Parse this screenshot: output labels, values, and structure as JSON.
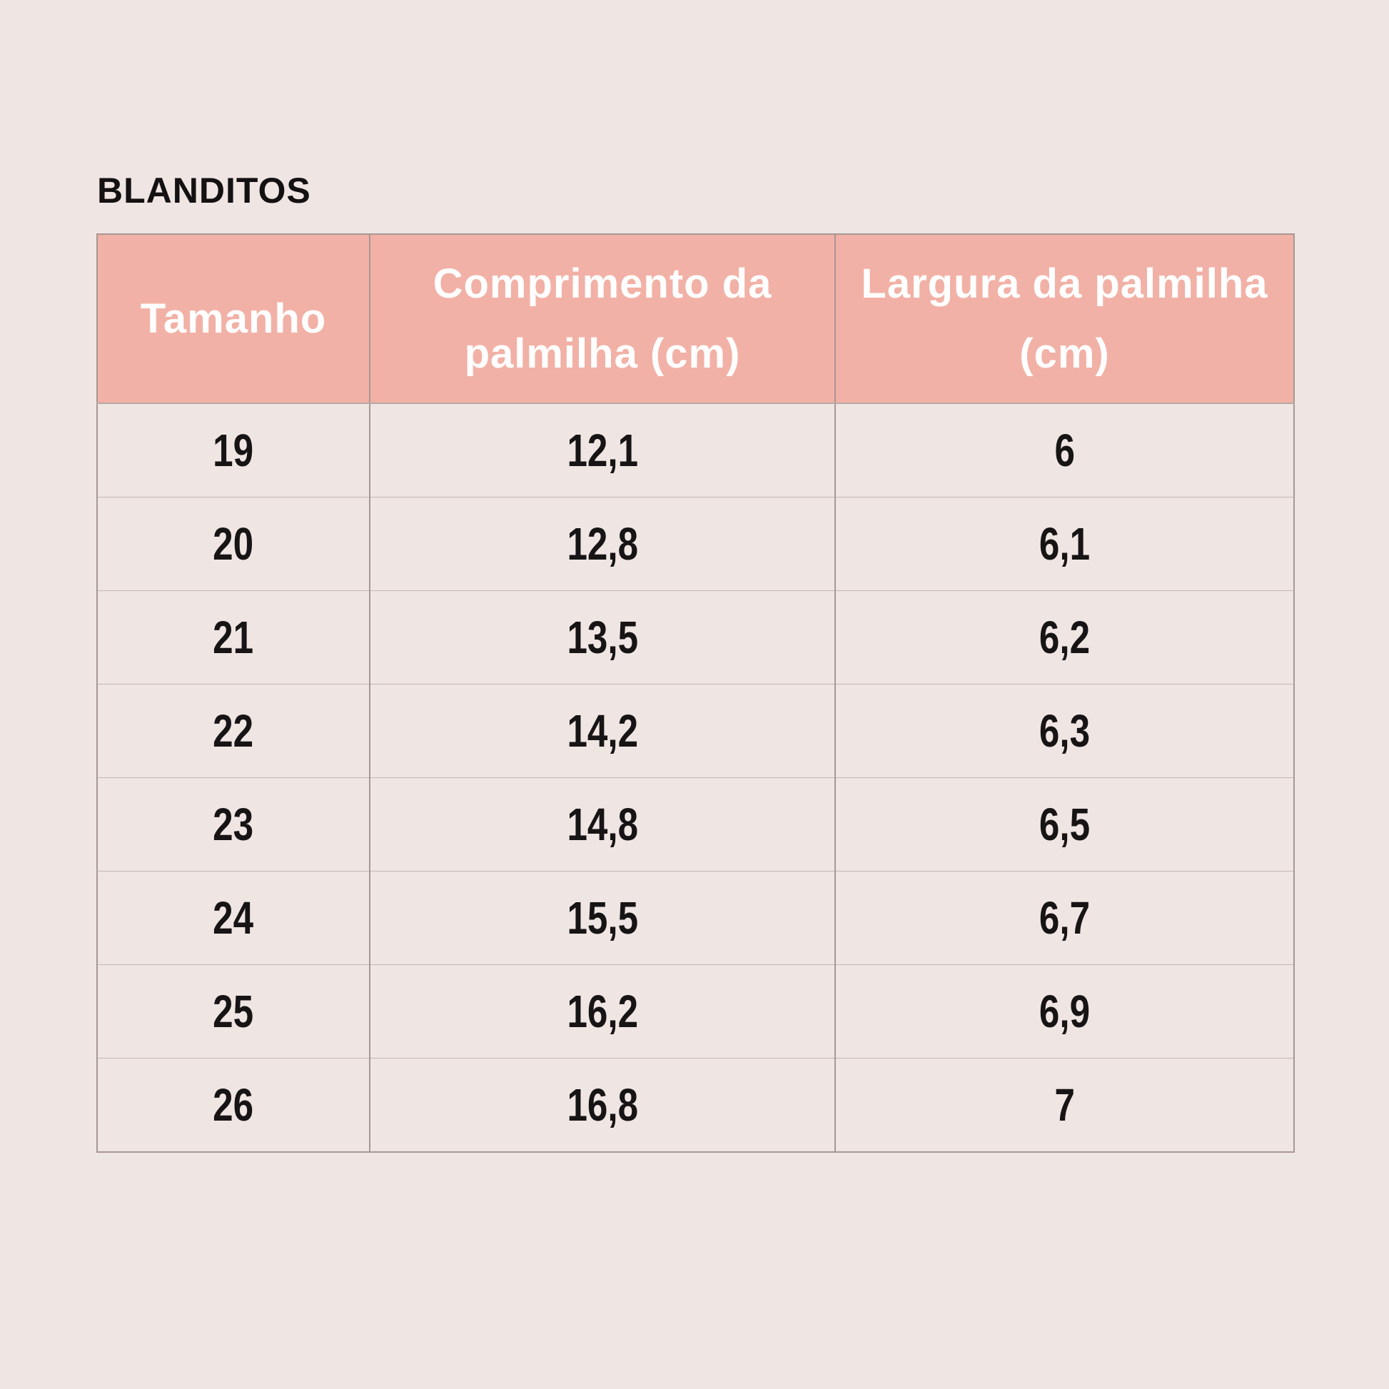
{
  "page": {
    "background_color": "#efe5e2"
  },
  "title": "BLANDITOS",
  "colors": {
    "header_bg": "#f2b1a6",
    "header_text": "#ffffff",
    "body_text": "#171415",
    "border_vertical": "#a69894",
    "border_horizontal": "#c3b7b3"
  },
  "chart_data": {
    "type": "table",
    "title": "BLANDITOS",
    "columns": [
      "Tamanho",
      "Comprimento da palmilha (cm)",
      "Largura da palmilha (cm)"
    ],
    "rows": [
      [
        "19",
        "12,1",
        "6"
      ],
      [
        "20",
        "12,8",
        "6,1"
      ],
      [
        "21",
        "13,5",
        "6,2"
      ],
      [
        "22",
        "14,2",
        "6,3"
      ],
      [
        "23",
        "14,8",
        "6,5"
      ],
      [
        "24",
        "15,5",
        "6,7"
      ],
      [
        "25",
        "16,2",
        "6,9"
      ],
      [
        "26",
        "16,8",
        "7"
      ]
    ]
  }
}
